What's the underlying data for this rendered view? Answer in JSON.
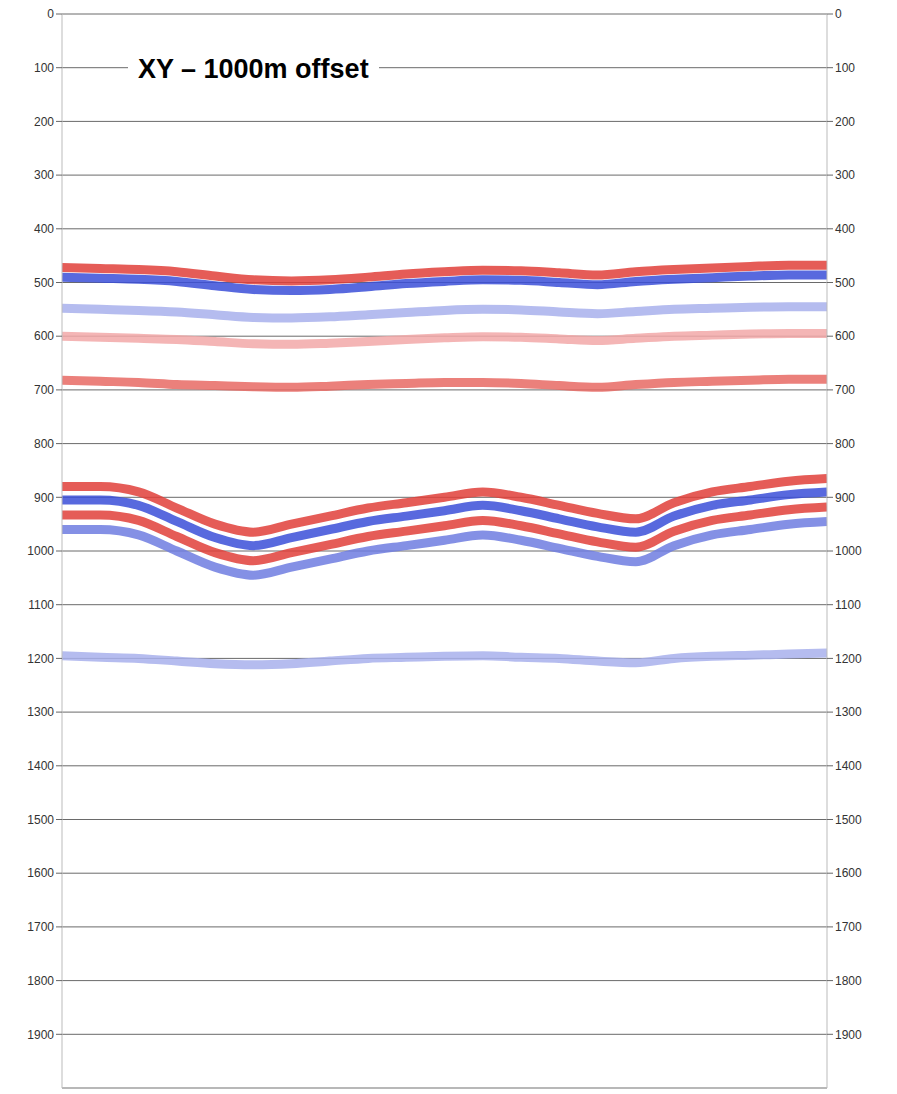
{
  "chart_data": {
    "type": "line",
    "title": "XY – 1000m offset",
    "x": [
      0,
      5,
      10,
      15,
      20,
      25,
      30,
      35,
      40,
      45,
      50,
      55,
      60,
      65,
      70,
      75,
      80,
      85,
      90,
      95,
      100
    ],
    "xlim": [
      0,
      100
    ],
    "ylim": [
      0,
      2000
    ],
    "yticks": [
      0,
      100,
      200,
      300,
      400,
      500,
      600,
      700,
      800,
      900,
      1000,
      1100,
      1200,
      1300,
      1400,
      1500,
      1600,
      1700,
      1800,
      1900
    ],
    "grid": true,
    "tick_labels": "y",
    "marker": "none",
    "line_style": "solid",
    "series": [
      {
        "color": "#e0403a",
        "values": [
          472,
          474,
          476,
          480,
          488,
          495,
          497,
          495,
          490,
          484,
          480,
          477,
          478,
          482,
          486,
          480,
          476,
          473,
          470,
          468,
          468
        ]
      },
      {
        "color": "#3b4fd8",
        "values": [
          490,
          492,
          494,
          498,
          506,
          513,
          515,
          513,
          508,
          502,
          498,
          495,
          496,
          500,
          504,
          498,
          494,
          491,
          488,
          486,
          486
        ]
      },
      {
        "color": "#a8b0ec",
        "values": [
          548,
          550,
          552,
          555,
          560,
          565,
          566,
          564,
          560,
          556,
          552,
          550,
          551,
          555,
          558,
          554,
          550,
          548,
          546,
          545,
          545
        ]
      },
      {
        "color": "#f2a8a8",
        "values": [
          600,
          602,
          604,
          606,
          610,
          614,
          615,
          613,
          610,
          606,
          603,
          601,
          602,
          605,
          608,
          604,
          600,
          598,
          596,
          595,
          595
        ]
      },
      {
        "color": "#e86a64",
        "values": [
          682,
          684,
          686,
          690,
          692,
          694,
          695,
          693,
          690,
          688,
          686,
          686,
          688,
          692,
          695,
          690,
          686,
          684,
          682,
          680,
          680
        ]
      },
      {
        "color": "#e0403a",
        "values": [
          880,
          880,
          890,
          920,
          950,
          965,
          950,
          935,
          920,
          910,
          900,
          890,
          900,
          915,
          930,
          940,
          910,
          890,
          880,
          870,
          865
        ]
      },
      {
        "color": "#3b4fd8",
        "values": [
          905,
          905,
          915,
          945,
          975,
          990,
          975,
          960,
          945,
          935,
          925,
          915,
          925,
          940,
          955,
          965,
          935,
          915,
          905,
          895,
          890
        ]
      },
      {
        "color": "#e0403a",
        "values": [
          933,
          933,
          943,
          973,
          1003,
          1018,
          1003,
          988,
          973,
          963,
          953,
          943,
          953,
          968,
          983,
          993,
          963,
          943,
          933,
          923,
          918
        ]
      },
      {
        "color": "#6f7ce0",
        "values": [
          960,
          960,
          970,
          1000,
          1030,
          1045,
          1030,
          1015,
          1000,
          990,
          980,
          970,
          980,
          995,
          1010,
          1020,
          990,
          970,
          960,
          950,
          945
        ]
      },
      {
        "color": "#a8b0ec",
        "values": [
          1195,
          1198,
          1200,
          1205,
          1210,
          1212,
          1210,
          1205,
          1200,
          1198,
          1196,
          1195,
          1198,
          1200,
          1205,
          1208,
          1200,
          1196,
          1194,
          1192,
          1190
        ]
      }
    ]
  }
}
